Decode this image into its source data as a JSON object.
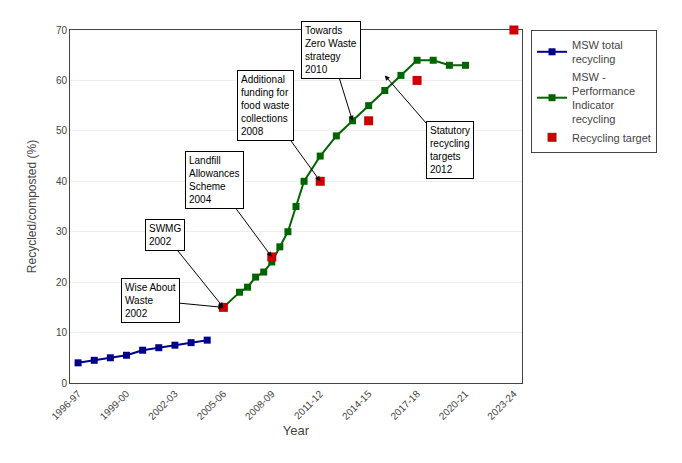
{
  "chart_data": {
    "type": "line",
    "xlabel": "Year",
    "ylabel": "Recycled/composted (%)",
    "xlim": [
      -0.5,
      27.5
    ],
    "xticks": [
      {
        "value": 0,
        "label": "1996-97"
      },
      {
        "value": 3,
        "label": "1999-00"
      },
      {
        "value": 6,
        "label": "2002-03"
      },
      {
        "value": 9,
        "label": "2005-06"
      },
      {
        "value": 12,
        "label": "2008-09"
      },
      {
        "value": 15,
        "label": "2011-12"
      },
      {
        "value": 18,
        "label": "2014-15"
      },
      {
        "value": 21,
        "label": "2017-18"
      },
      {
        "value": 24,
        "label": "2020-21"
      },
      {
        "value": 27,
        "label": "2023-24"
      }
    ],
    "ylim": [
      0,
      70
    ],
    "yticks": [
      0,
      10,
      20,
      30,
      40,
      50,
      60,
      70
    ],
    "grid": true,
    "legend": "right",
    "series": [
      {
        "name": "MSW total\nrecycling",
        "type": "line",
        "marker": "square",
        "color": "#00008b",
        "x": [
          0,
          1,
          2,
          3,
          4,
          5,
          6,
          7,
          8
        ],
        "values": [
          4,
          4.5,
          5,
          5.5,
          6.5,
          7,
          7.5,
          8,
          8.5
        ]
      },
      {
        "name": "MSW -\nPerformance\nIndicator\nrecycling",
        "type": "line",
        "marker": "square",
        "color": "#006400",
        "x": [
          9,
          10,
          10.5,
          11,
          11.5,
          12,
          12.5,
          13,
          13.5,
          14,
          15,
          16,
          17,
          18,
          19,
          20,
          21,
          22,
          23,
          24
        ],
        "values": [
          15,
          18,
          19,
          21,
          22,
          24,
          27,
          30,
          35,
          40,
          45,
          49,
          52,
          55,
          58,
          61,
          64,
          64,
          63,
          63
        ]
      },
      {
        "name": "Recycling target",
        "type": "scatter",
        "marker": "square",
        "color": "#cc0000",
        "x": [
          9,
          12,
          15,
          18,
          21,
          27
        ],
        "values": [
          15,
          25,
          40,
          52,
          60,
          70
        ]
      }
    ],
    "annotations": [
      {
        "text": "Wise About\nWaste\n2002",
        "x": 9,
        "y": 15
      },
      {
        "text": "SWMG\n2002",
        "x": 9,
        "y": 15
      },
      {
        "text": "Landfill\nAllowances\nScheme\n2004",
        "x": 12,
        "y": 25
      },
      {
        "text": "Additional\nfunding for\nfood waste\ncollections\n2008",
        "x": 15,
        "y": 40
      },
      {
        "text": "Towards\nZero Waste\nstrategy\n2010",
        "x": 17,
        "y": 52
      },
      {
        "text": "Statutory\nrecycling\ntargets\n2012",
        "x": 19,
        "y": 61
      }
    ]
  }
}
